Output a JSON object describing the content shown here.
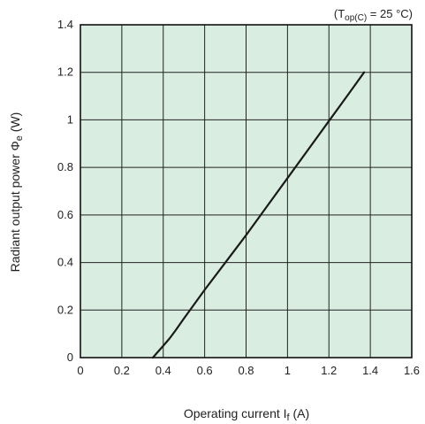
{
  "chart_data": {
    "type": "line",
    "condition_label": {
      "prefix": "(T",
      "subscript": "op(C)",
      "suffix": " = 25 °C)"
    },
    "xlabel": {
      "main": "Operating current I",
      "subscript": "f",
      "unit": " (A)"
    },
    "ylabel": {
      "main": "Radiant output power Φ",
      "subscript": "e",
      "unit": " (W)"
    },
    "xlim": [
      0,
      1.6
    ],
    "ylim": [
      0,
      1.4
    ],
    "x_ticks": [
      "0",
      "0.2",
      "0.4",
      "0.6",
      "0.8",
      "1",
      "1.2",
      "1.4",
      "1.6"
    ],
    "y_ticks": [
      "0",
      "0.2",
      "0.4",
      "0.6",
      "0.8",
      "1",
      "1.2",
      "1.4"
    ],
    "grid": true,
    "plot_background": "#d9ede0",
    "grid_color": "#222222",
    "line_color": "#1a1a1a",
    "series": [
      {
        "x": [
          0.35,
          0.37,
          0.4,
          0.43,
          0.46,
          0.5,
          0.55,
          0.6,
          0.7,
          0.8,
          0.9,
          1.0,
          1.1,
          1.2,
          1.3,
          1.37
        ],
        "y": [
          0.0,
          0.02,
          0.05,
          0.08,
          0.115,
          0.165,
          0.225,
          0.285,
          0.4,
          0.515,
          0.635,
          0.755,
          0.875,
          0.995,
          1.115,
          1.2
        ]
      }
    ]
  }
}
